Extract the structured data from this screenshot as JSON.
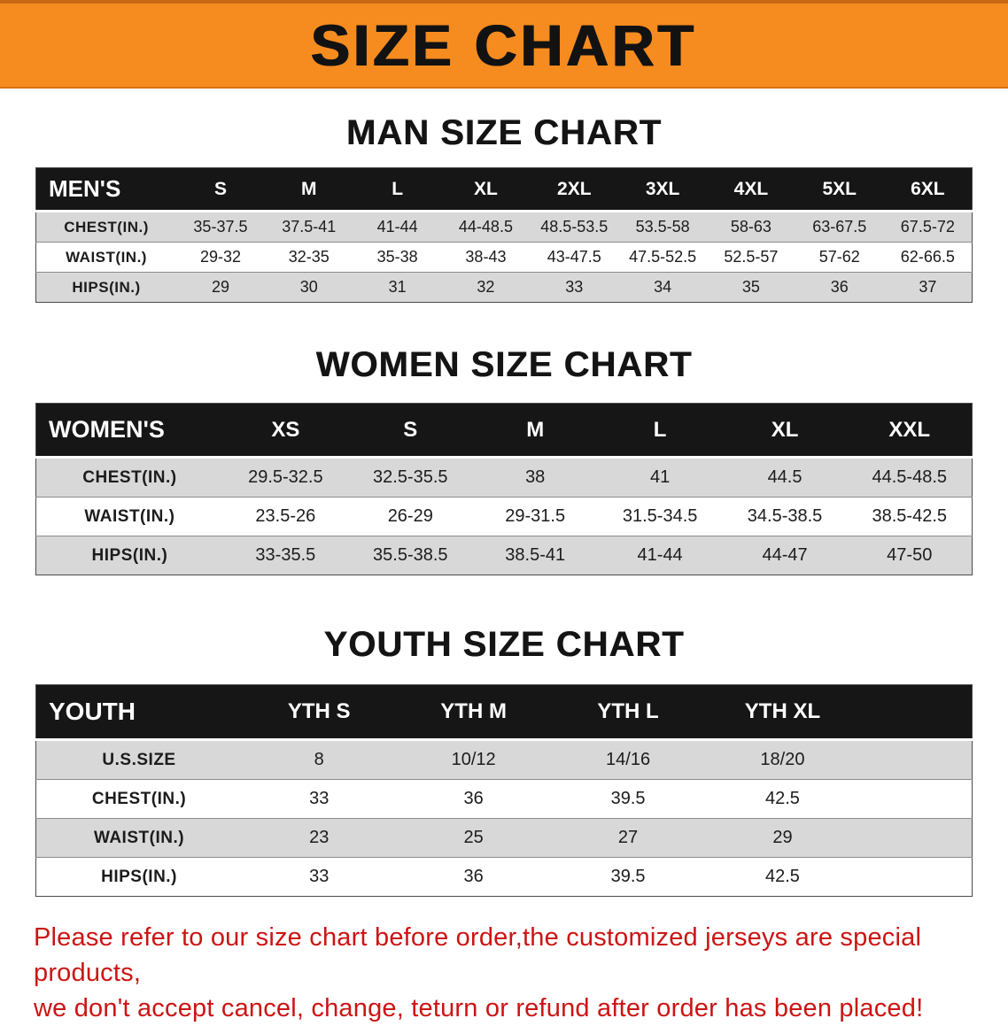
{
  "banner": {
    "title": "SIZE CHART"
  },
  "colors": {
    "banner_bg": "#f68b1f",
    "table_header_bg": "#161616",
    "stripe": "#d8d8d8",
    "note_text": "#cc1414"
  },
  "sections": [
    {
      "heading": "MAN SIZE CHART",
      "table": {
        "name": "men",
        "header": [
          "MEN'S",
          "S",
          "M",
          "L",
          "XL",
          "2XL",
          "3XL",
          "4XL",
          "5XL",
          "6XL"
        ],
        "rows": [
          {
            "label": "CHEST(IN.)",
            "values": [
              "35-37.5",
              "37.5-41",
              "41-44",
              "44-48.5",
              "48.5-53.5",
              "53.5-58",
              "58-63",
              "63-67.5",
              "67.5-72"
            ]
          },
          {
            "label": "WAIST(IN.)",
            "values": [
              "29-32",
              "32-35",
              "35-38",
              "38-43",
              "43-47.5",
              "47.5-52.5",
              "52.5-57",
              "57-62",
              "62-66.5"
            ]
          },
          {
            "label": "HIPS(IN.)",
            "values": [
              "29",
              "30",
              "31",
              "32",
              "33",
              "34",
              "35",
              "36",
              "37"
            ]
          }
        ]
      }
    },
    {
      "heading": "WOMEN SIZE CHART",
      "table": {
        "name": "women",
        "header": [
          "WOMEN'S",
          "XS",
          "S",
          "M",
          "L",
          "XL",
          "XXL"
        ],
        "rows": [
          {
            "label": "CHEST(IN.)",
            "values": [
              "29.5-32.5",
              "32.5-35.5",
              "38",
              "41",
              "44.5",
              "44.5-48.5"
            ]
          },
          {
            "label": "WAIST(IN.)",
            "values": [
              "23.5-26",
              "26-29",
              "29-31.5",
              "31.5-34.5",
              "34.5-38.5",
              "38.5-42.5"
            ]
          },
          {
            "label": "HIPS(IN.)",
            "values": [
              "33-35.5",
              "35.5-38.5",
              "38.5-41",
              "41-44",
              "44-47",
              "47-50"
            ]
          }
        ]
      }
    },
    {
      "heading": "YOUTH SIZE CHART",
      "table": {
        "name": "youth",
        "filler": true,
        "header": [
          "YOUTH",
          "YTH S",
          "YTH M",
          "YTH L",
          "YTH XL"
        ],
        "rows": [
          {
            "label": "U.S.SIZE",
            "values": [
              "8",
              "10/12",
              "14/16",
              "18/20"
            ]
          },
          {
            "label": "CHEST(IN.)",
            "values": [
              "33",
              "36",
              "39.5",
              "42.5"
            ]
          },
          {
            "label": "WAIST(IN.)",
            "values": [
              "23",
              "25",
              "27",
              "29"
            ]
          },
          {
            "label": "HIPS(IN.)",
            "values": [
              "33",
              "36",
              "39.5",
              "42.5"
            ]
          }
        ]
      }
    }
  ],
  "note": {
    "line1": "Please refer to our size chart before order,the customized jerseys are special products,",
    "line2": "we don't accept cancel, change, teturn or refund after order has been placed!"
  }
}
